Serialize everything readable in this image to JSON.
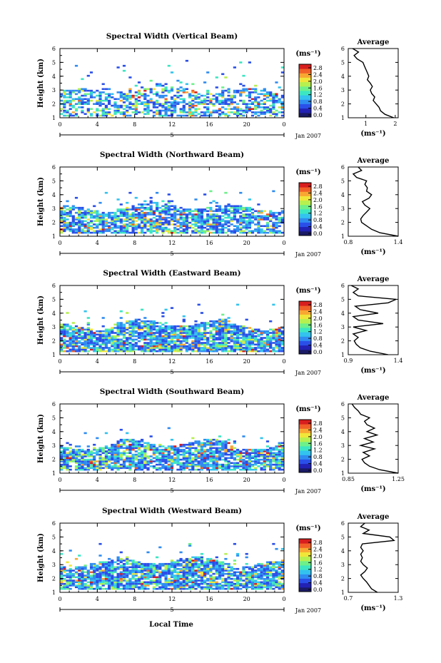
{
  "figure": {
    "xlabel": "Local Time",
    "date_label": "Jan 2007",
    "day_label": "5",
    "ylabel": "Height (km)",
    "unit_label": "(ms⁻¹)",
    "avg_title": "Average",
    "avg_xlabel": "(ms⁻¹)"
  },
  "colorbar": {
    "ticks": [
      "2.8",
      "2.4",
      "2.0",
      "1.6",
      "1.2",
      "0.8",
      "0.4",
      "0.0"
    ],
    "colors": [
      "#1a1a66",
      "#2222b4",
      "#2a4fe8",
      "#2f8cf0",
      "#33c3ee",
      "#3ce6c2",
      "#6ef08a",
      "#b6f050",
      "#f0e63a",
      "#f8a832",
      "#f06028",
      "#d81e1e"
    ]
  },
  "chart_data": [
    {
      "type": "heatmap",
      "title": "Spectral Width (Vertical Beam)",
      "x_ticks": [
        "0",
        "4",
        "8",
        "12",
        "16",
        "20",
        "0"
      ],
      "y_ticks": [
        "1",
        "2",
        "3",
        "4",
        "5",
        "6"
      ],
      "xlim": [
        0,
        24
      ],
      "ylim": [
        1,
        6
      ],
      "avg": {
        "x_ticks": [
          "1",
          "2"
        ],
        "xlim": [
          0.4,
          2.1
        ],
        "heights": [
          1.0,
          1.25,
          1.5,
          1.75,
          2.0,
          2.25,
          2.5,
          2.75,
          3.0,
          3.25,
          3.5,
          3.75,
          4.0,
          4.25,
          4.5,
          4.75,
          5.0,
          5.25,
          5.5,
          5.75,
          6.0
        ],
        "values": [
          1.95,
          1.65,
          1.5,
          1.45,
          1.35,
          1.25,
          1.3,
          1.2,
          1.15,
          1.22,
          1.15,
          1.05,
          1.1,
          1.05,
          1.0,
          0.95,
          0.9,
          0.7,
          0.6,
          0.75,
          0.55
        ]
      }
    },
    {
      "type": "heatmap",
      "title": "Spectral Width (Northward Beam)",
      "x_ticks": [
        "0",
        "4",
        "8",
        "12",
        "16",
        "20",
        "0"
      ],
      "y_ticks": [
        "1",
        "2",
        "3",
        "4",
        "5",
        "6"
      ],
      "xlim": [
        0,
        24
      ],
      "ylim": [
        1,
        6
      ],
      "avg": {
        "x_ticks": [
          "0.8",
          "1.4"
        ],
        "xlim": [
          0.8,
          1.4
        ],
        "heights": [
          1.0,
          1.25,
          1.5,
          1.75,
          2.0,
          2.25,
          2.5,
          2.75,
          3.0,
          3.25,
          3.5,
          3.75,
          4.0,
          4.25,
          4.5,
          4.75,
          5.0,
          5.25,
          5.5,
          5.75,
          6.0
        ],
        "values": [
          1.4,
          1.18,
          1.08,
          1.02,
          0.96,
          0.95,
          0.98,
          1.02,
          1.06,
          1.0,
          0.97,
          1.05,
          1.08,
          1.02,
          1.03,
          1.0,
          1.02,
          0.9,
          0.86,
          0.96,
          0.92
        ]
      }
    },
    {
      "type": "heatmap",
      "title": "Spectral Width (Eastward Beam)",
      "x_ticks": [
        "0",
        "4",
        "8",
        "12",
        "16",
        "20",
        "0"
      ],
      "y_ticks": [
        "1",
        "2",
        "3",
        "4",
        "5",
        "6"
      ],
      "xlim": [
        0,
        24
      ],
      "ylim": [
        1,
        6
      ],
      "avg": {
        "x_ticks": [
          "0.9",
          "1.4"
        ],
        "xlim": [
          0.9,
          1.4
        ],
        "heights": [
          1.0,
          1.25,
          1.5,
          1.75,
          2.0,
          2.25,
          2.5,
          2.75,
          3.0,
          3.25,
          3.5,
          3.75,
          4.0,
          4.25,
          4.5,
          4.75,
          5.0,
          5.25,
          5.5,
          5.75,
          6.0
        ],
        "values": [
          1.3,
          1.12,
          1.02,
          0.98,
          0.96,
          1.0,
          0.95,
          1.08,
          0.95,
          1.25,
          1.0,
          0.95,
          1.2,
          1.02,
          0.97,
          1.3,
          1.38,
          1.0,
          0.95,
          1.0,
          0.93
        ]
      }
    },
    {
      "type": "heatmap",
      "title": "Spectral Width (Southward Beam)",
      "x_ticks": [
        "0",
        "4",
        "8",
        "12",
        "16",
        "20",
        "0"
      ],
      "y_ticks": [
        "1",
        "2",
        "3",
        "4",
        "5",
        "6"
      ],
      "xlim": [
        0,
        24
      ],
      "ylim": [
        1,
        6
      ],
      "avg": {
        "x_ticks": [
          "0.85",
          "1.25"
        ],
        "xlim": [
          0.85,
          1.25
        ],
        "heights": [
          1.0,
          1.25,
          1.5,
          1.75,
          2.0,
          2.25,
          2.5,
          2.75,
          3.0,
          3.25,
          3.5,
          3.75,
          4.0,
          4.25,
          4.5,
          4.75,
          5.0,
          5.25,
          5.5,
          5.75,
          6.0
        ],
        "values": [
          1.25,
          1.1,
          1.02,
          0.98,
          0.96,
          1.02,
          0.97,
          1.06,
          0.95,
          1.05,
          0.98,
          1.08,
          1.0,
          1.06,
          1.0,
          0.98,
          1.02,
          0.95,
          0.93,
          0.9,
          0.88
        ]
      }
    },
    {
      "type": "heatmap",
      "title": "Spectral Width (Westward Beam)",
      "x_ticks": [
        "0",
        "4",
        "8",
        "12",
        "16",
        "20",
        "0"
      ],
      "y_ticks": [
        "1",
        "2",
        "3",
        "4",
        "5",
        "6"
      ],
      "xlim": [
        0,
        24
      ],
      "ylim": [
        1,
        6
      ],
      "avg": {
        "x_ticks": [
          "0.7",
          "1.3"
        ],
        "xlim": [
          0.7,
          1.3
        ],
        "heights": [
          1.0,
          1.25,
          1.5,
          1.75,
          2.0,
          2.25,
          2.5,
          2.75,
          3.0,
          3.25,
          3.5,
          3.75,
          4.0,
          4.25,
          4.5,
          4.75,
          5.0,
          5.25,
          5.5,
          5.75,
          6.0
        ],
        "values": [
          1.05,
          0.98,
          0.95,
          0.92,
          0.88,
          0.85,
          0.9,
          0.93,
          0.88,
          0.85,
          0.87,
          0.85,
          0.88,
          0.85,
          0.87,
          1.25,
          1.2,
          0.88,
          0.95,
          0.85,
          0.9
        ]
      }
    }
  ]
}
